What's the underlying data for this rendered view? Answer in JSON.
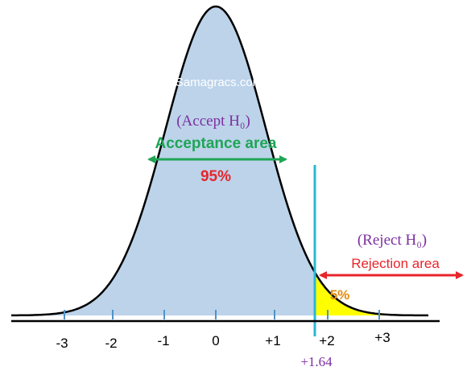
{
  "watermark": "Samagracs.com",
  "accept_label": "(Accept H₀)",
  "acceptance_area_label": "Acceptance area",
  "acceptance_percent": "95%",
  "reject_label": "(Reject H₀)",
  "rejection_area_label": "Rejection area",
  "rejection_percent": "5%",
  "critical_value_label": "+1.64",
  "tick_labels": [
    "-3",
    "-2",
    "-1",
    "0",
    "+1",
    "+2",
    "+3"
  ],
  "colors": {
    "accept_fill": "#bcd3ea",
    "reject_fill": "#ffff00",
    "curve": "#000000",
    "critical_line": "#29b8d3",
    "axis_ticks": "#4f93c7",
    "purple_text": "#7b2fa0",
    "green_text": "#1fa556",
    "red_text": "#e8252b",
    "orange_text": "#e58a0c",
    "watermark": "#ffffff"
  },
  "icons": {
    "acceptance_arrow": "double-headed-arrow",
    "rejection_arrow": "double-headed-arrow"
  }
}
